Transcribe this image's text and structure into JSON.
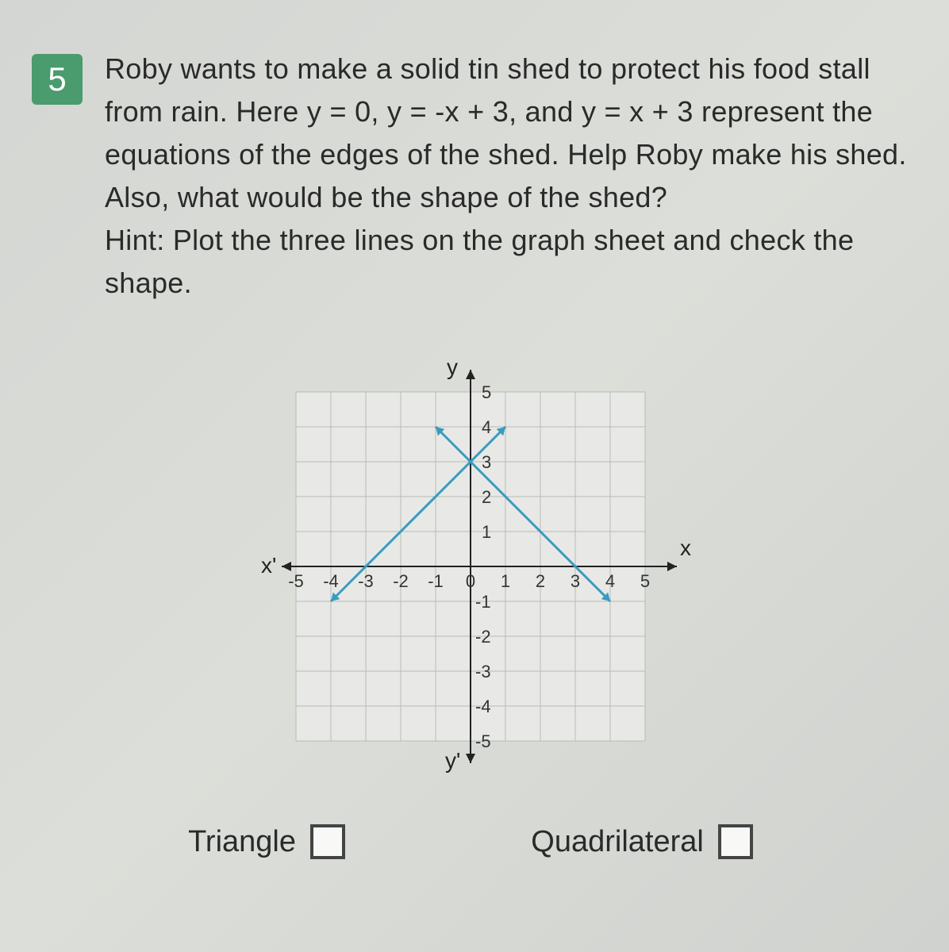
{
  "question": {
    "number": "5",
    "text": "Roby wants to make a solid tin shed to protect his food stall from rain. Here y = 0, y = -x + 3, and y = x + 3 represent the equations of the edges of the shed. Help Roby make his shed. Also, what would be the shape of the shed?",
    "hint": "Hint: Plot the three lines on the graph sheet and check the shape."
  },
  "chart": {
    "type": "line",
    "xlim": [
      -5,
      5
    ],
    "ylim": [
      -5,
      5
    ],
    "xtick_step": 1,
    "ytick_step": 1,
    "x_ticks": [
      "-5",
      "-4",
      "-3",
      "-2",
      "-1",
      "0",
      "1",
      "2",
      "3",
      "4",
      "5"
    ],
    "y_ticks_pos": [
      "1",
      "2",
      "3",
      "4",
      "5"
    ],
    "y_ticks_neg": [
      "-1",
      "-2",
      "-3",
      "-4",
      "-5"
    ],
    "axis_labels": {
      "x_pos": "x",
      "x_neg": "x'",
      "y_pos": "y",
      "y_neg": "y'"
    },
    "background_color": "#e8e9e6",
    "grid_color": "#b8bab6",
    "axis_color": "#222222",
    "line_color": "#3a9bbf",
    "tick_label_color": "#333333",
    "tick_fontsize": 22,
    "axis_label_fontsize": 28,
    "line_width": 3,
    "grid_width": 1,
    "cell_size": 44,
    "lines": [
      {
        "name": "y = x + 3",
        "points": [
          [
            -4,
            -1
          ],
          [
            1,
            4
          ]
        ]
      },
      {
        "name": "y = -x + 3",
        "points": [
          [
            -1,
            4
          ],
          [
            4,
            -1
          ]
        ]
      }
    ]
  },
  "options": {
    "triangle": "Triangle",
    "quadrilateral": "Quadrilateral"
  },
  "colors": {
    "question_badge_bg": "#4a9b6e",
    "question_badge_text": "#ffffff",
    "body_text": "#2a2a2a",
    "page_bg": "#d8dad7"
  }
}
